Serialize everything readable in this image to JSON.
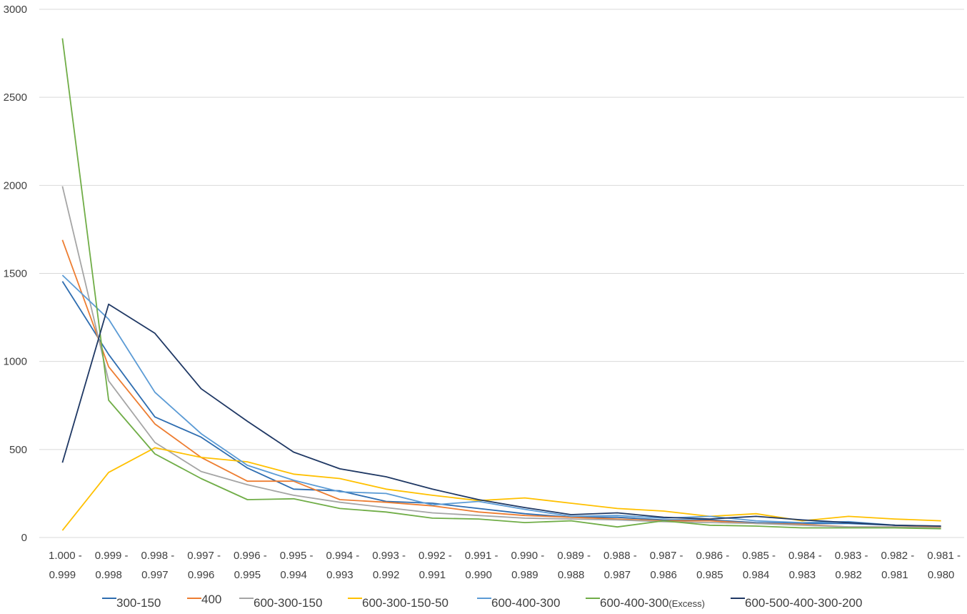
{
  "chart_data": {
    "type": "line",
    "title": "",
    "xlabel": "",
    "ylabel": "",
    "ylim": [
      0,
      3000
    ],
    "yticks": [
      "0",
      "500",
      "1000",
      "1500",
      "2000",
      "2500",
      "3000"
    ],
    "grid": true,
    "legend_position": "bottom",
    "categories": [
      {
        "line1": "1.000 -",
        "line2": "0.999"
      },
      {
        "line1": "0.999 -",
        "line2": "0.998"
      },
      {
        "line1": "0.998 -",
        "line2": "0.997"
      },
      {
        "line1": "0.997 -",
        "line2": "0.996"
      },
      {
        "line1": "0.996 -",
        "line2": "0.995"
      },
      {
        "line1": "0.995 -",
        "line2": "0.994"
      },
      {
        "line1": "0.994 -",
        "line2": "0.993"
      },
      {
        "line1": "0.993 -",
        "line2": "0.992"
      },
      {
        "line1": "0.992 -",
        "line2": "0.991"
      },
      {
        "line1": "0.991 -",
        "line2": "0.990"
      },
      {
        "line1": "0.990 -",
        "line2": "0.989"
      },
      {
        "line1": "0.989 -",
        "line2": "0.988"
      },
      {
        "line1": "0.988 -",
        "line2": "0.987"
      },
      {
        "line1": "0.987 -",
        "line2": "0.986"
      },
      {
        "line1": "0.986 -",
        "line2": "0.985"
      },
      {
        "line1": "0.985 -",
        "line2": "0.984"
      },
      {
        "line1": "0.984 -",
        "line2": "0.983"
      },
      {
        "line1": "0.983 -",
        "line2": "0.982"
      },
      {
        "line1": "0.982 -",
        "line2": "0.981"
      },
      {
        "line1": "0.981 -",
        "line2": "0.980"
      }
    ],
    "series": [
      {
        "name": "300-150",
        "color": "#2e6db0",
        "values": [
          1455,
          1040,
          685,
          570,
          395,
          275,
          265,
          205,
          195,
          165,
          135,
          115,
          115,
          100,
          100,
          85,
          80,
          80,
          70,
          60
        ]
      },
      {
        "name": "400",
        "color": "#ed7d31",
        "values": [
          1690,
          970,
          645,
          455,
          320,
          320,
          215,
          200,
          180,
          145,
          125,
          115,
          105,
          95,
          95,
          80,
          75,
          60,
          60,
          60
        ]
      },
      {
        "name": "600-300-150",
        "color": "#a5a5a5",
        "values": [
          1995,
          890,
          540,
          375,
          300,
          240,
          200,
          170,
          140,
          125,
          110,
          105,
          100,
          90,
          85,
          80,
          70,
          60,
          60,
          55
        ]
      },
      {
        "name": "600-300-150-50",
        "color": "#ffc000",
        "values": [
          40,
          370,
          510,
          455,
          430,
          360,
          335,
          275,
          240,
          210,
          225,
          195,
          165,
          150,
          120,
          135,
          95,
          120,
          105,
          95
        ]
      },
      {
        "name": "600-400-300",
        "color": "#5b9bd5",
        "values": [
          1490,
          1240,
          825,
          590,
          410,
          325,
          260,
          250,
          185,
          205,
          160,
          120,
          125,
          110,
          120,
          95,
          85,
          90,
          70,
          65
        ]
      },
      {
        "name": "600-400-300",
        "name_suffix": "(Excess)",
        "color": "#70ad47",
        "values": [
          2835,
          780,
          475,
          335,
          215,
          220,
          165,
          145,
          110,
          105,
          85,
          95,
          60,
          95,
          70,
          65,
          55,
          55,
          55,
          50
        ]
      },
      {
        "name": "600-500-400-300-200",
        "color": "#1f3864",
        "values": [
          425,
          1325,
          1160,
          845,
          660,
          485,
          390,
          345,
          275,
          215,
          170,
          130,
          140,
          115,
          105,
          120,
          100,
          85,
          70,
          65
        ]
      }
    ]
  }
}
